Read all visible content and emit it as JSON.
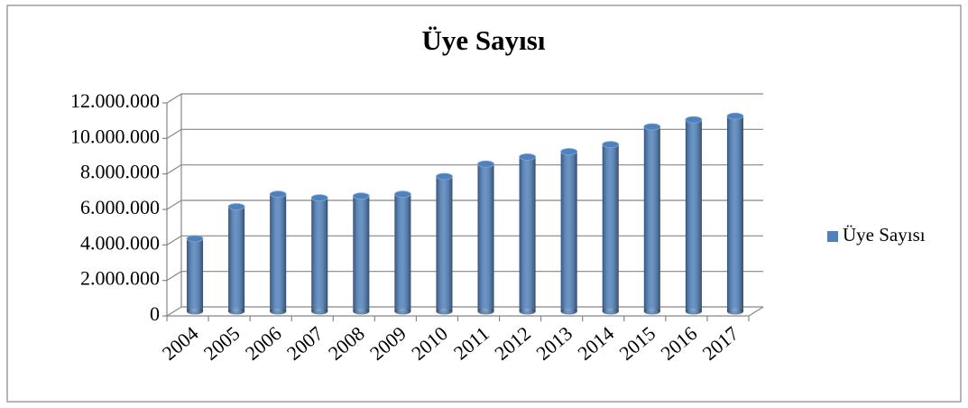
{
  "chart_data": {
    "type": "bar",
    "title": "Üye Sayısı",
    "categories": [
      "2004",
      "2005",
      "2006",
      "2007",
      "2008",
      "2009",
      "2010",
      "2011",
      "2012",
      "2013",
      "2014",
      "2015",
      "2016",
      "2017"
    ],
    "series": [
      {
        "name": "Üye Sayısı",
        "color": "#4f81bd",
        "values": [
          4100000,
          5900000,
          6600000,
          6400000,
          6500000,
          6600000,
          7600000,
          8300000,
          8700000,
          9000000,
          9400000,
          10400000,
          10800000,
          11000000
        ]
      }
    ],
    "ylim": [
      0,
      12000000
    ],
    "yticks": [
      0,
      {
        "value": 2000000,
        "label": "2.000.000"
      },
      {
        "value": 4000000,
        "label": "4.000.000"
      },
      {
        "value": 6000000,
        "label": "6.000.000"
      },
      {
        "value": 8000000,
        "label": "8.000.000"
      },
      {
        "value": 10000000,
        "label": "10.000.000"
      },
      {
        "value": 12000000,
        "label": "12.000.000"
      }
    ],
    "grid": true,
    "legend": "right"
  }
}
